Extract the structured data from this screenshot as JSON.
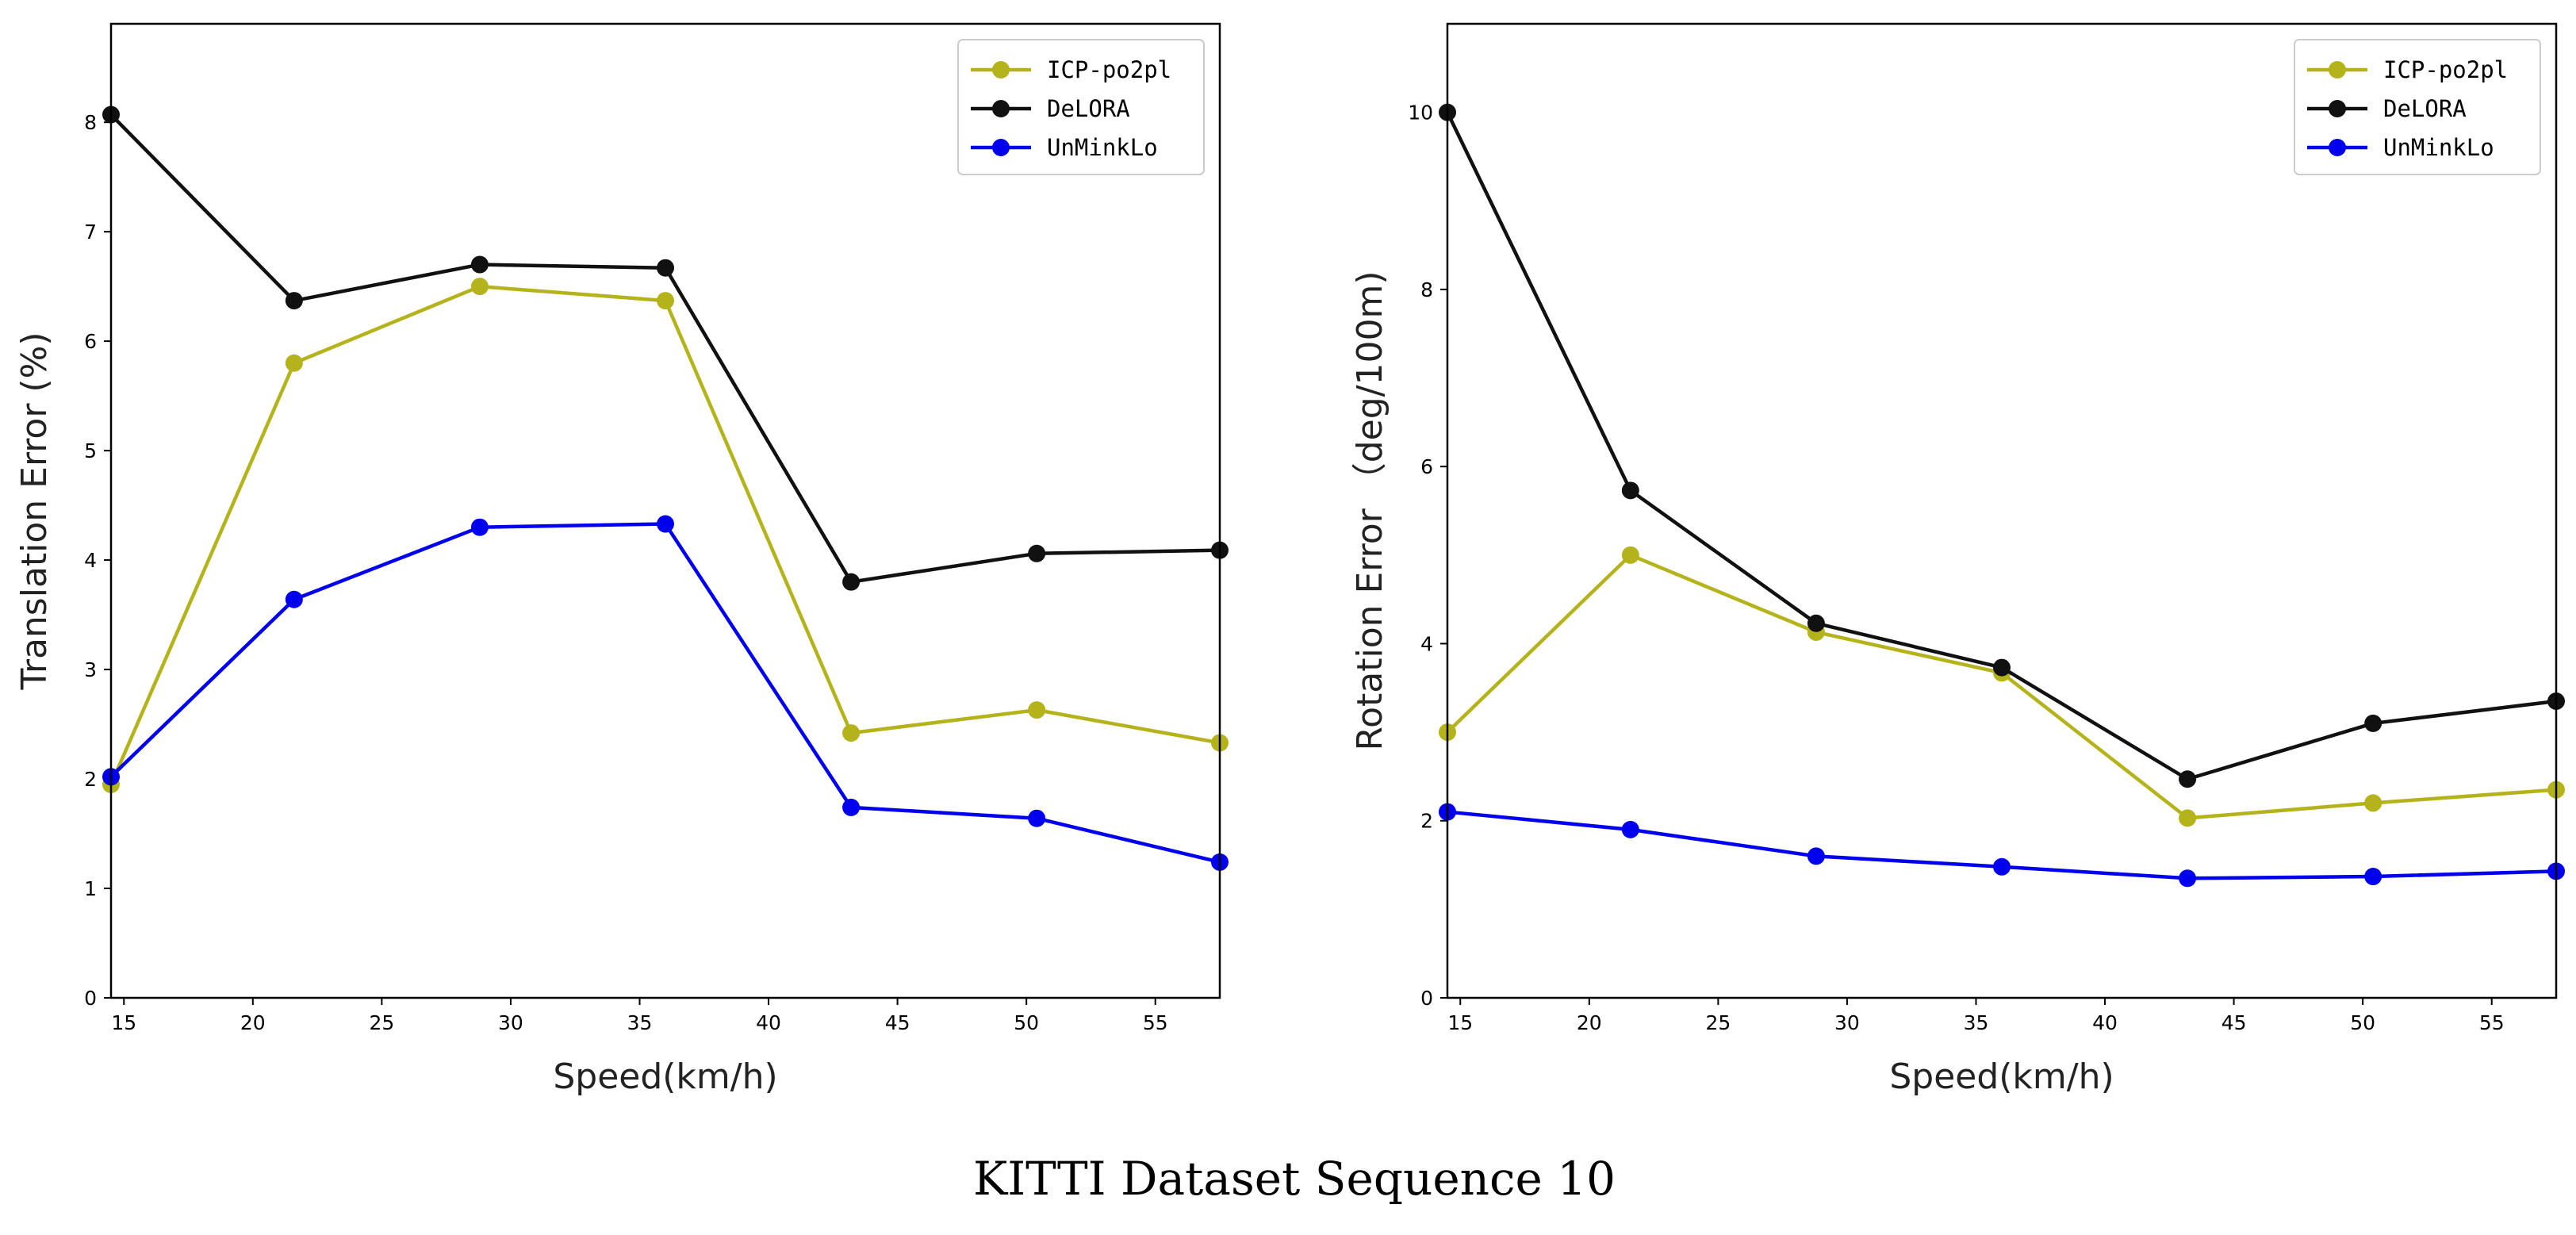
{
  "figure_caption": "KITTI Dataset Sequence 10",
  "chart_data": [
    {
      "type": "line",
      "title": "",
      "xlabel": "Speed(km/h)",
      "ylabel": "Translation Error (%)",
      "xlim": [
        14.5,
        57.5
      ],
      "ylim": [
        0,
        8.9
      ],
      "xticks": [
        15,
        20,
        25,
        30,
        35,
        40,
        45,
        50,
        55
      ],
      "yticks": [
        0,
        1,
        2,
        3,
        4,
        5,
        6,
        7,
        8
      ],
      "x": [
        14.5,
        21.6,
        28.8,
        36.0,
        43.2,
        50.4,
        57.5
      ],
      "legend_position": "top-right",
      "series": [
        {
          "name": "ICP-po2pl",
          "color": "#b5b31c",
          "values": [
            1.95,
            5.8,
            6.5,
            6.37,
            2.42,
            2.63,
            2.33
          ]
        },
        {
          "name": "DeLORA",
          "color": "#111111",
          "values": [
            8.07,
            6.37,
            6.7,
            6.67,
            3.8,
            4.06,
            4.09
          ]
        },
        {
          "name": "UnMinkLo",
          "color": "#0000ee",
          "values": [
            2.02,
            3.64,
            4.3,
            4.33,
            1.74,
            1.64,
            1.24
          ]
        }
      ]
    },
    {
      "type": "line",
      "title": "",
      "xlabel": "Speed(km/h)",
      "ylabel": "Rotation Error （deg/100m)",
      "xlim": [
        14.5,
        57.5
      ],
      "ylim": [
        0,
        11
      ],
      "xticks": [
        15,
        20,
        25,
        30,
        35,
        40,
        45,
        50,
        55
      ],
      "yticks": [
        0,
        2,
        4,
        6,
        8,
        10
      ],
      "x": [
        14.5,
        21.6,
        28.8,
        36.0,
        43.2,
        50.4,
        57.5
      ],
      "legend_position": "top-right",
      "series": [
        {
          "name": "ICP-po2pl",
          "color": "#b5b31c",
          "values": [
            3.0,
            5.0,
            4.13,
            3.67,
            2.03,
            2.2,
            2.35
          ]
        },
        {
          "name": "DeLORA",
          "color": "#111111",
          "values": [
            10.0,
            5.73,
            4.23,
            3.73,
            2.47,
            3.1,
            3.35
          ]
        },
        {
          "name": "UnMinkLo",
          "color": "#0000ee",
          "values": [
            2.1,
            1.9,
            1.6,
            1.48,
            1.35,
            1.37,
            1.43
          ]
        }
      ]
    }
  ]
}
